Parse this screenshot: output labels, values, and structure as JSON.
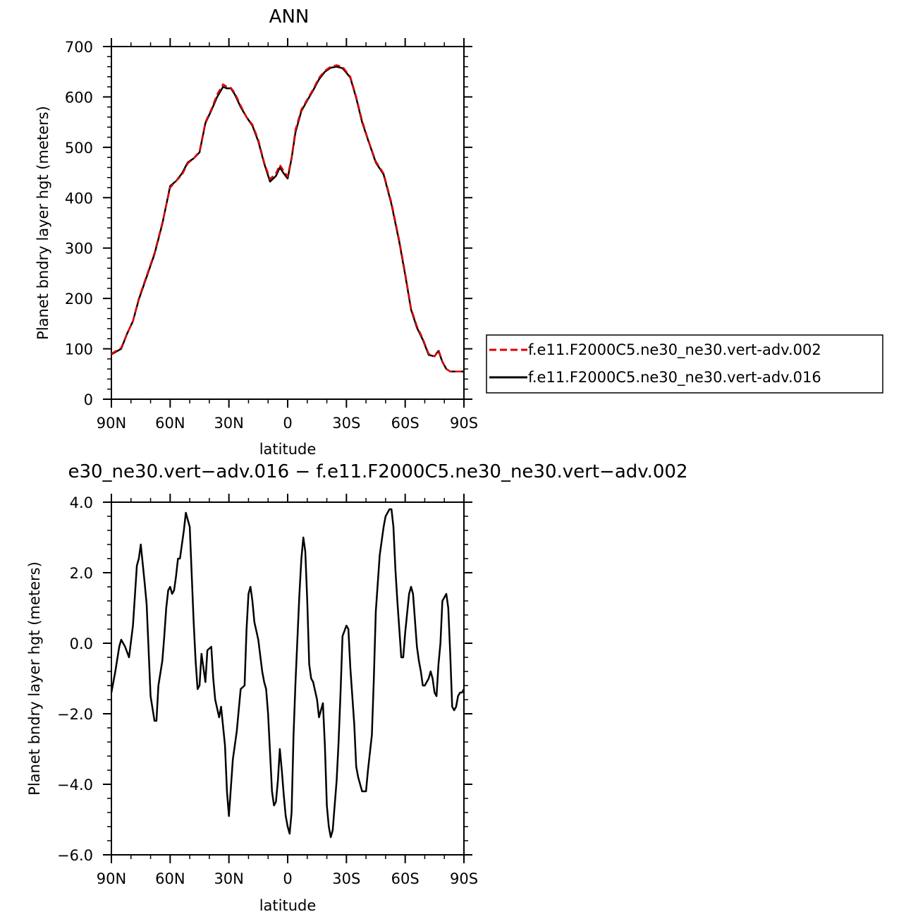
{
  "chart_data": [
    {
      "type": "line",
      "title": "ANN",
      "xlabel": "latitude",
      "ylabel": "Planet bndry layer hgt (meters)",
      "xlim": [
        -90,
        90
      ],
      "ylim": [
        0,
        700
      ],
      "x_ticks": [
        -90,
        -60,
        -30,
        0,
        30,
        60,
        90
      ],
      "x_tick_labels": [
        "90N",
        "60N",
        "30N",
        "0",
        "30S",
        "60S",
        "90S"
      ],
      "y_ticks": [
        0,
        100,
        200,
        300,
        400,
        500,
        600,
        700
      ],
      "y_tick_labels": [
        "0",
        "100",
        "200",
        "300",
        "400",
        "500",
        "600",
        "700"
      ],
      "x": [
        -90,
        -85,
        -82,
        -79,
        -76,
        -72,
        -68,
        -64,
        -60,
        -57,
        -54,
        -51,
        -48,
        -45,
        -42,
        -39,
        -36,
        -33,
        -31,
        -29,
        -27,
        -24,
        -21,
        -18,
        -15,
        -12,
        -9,
        -6,
        -4,
        -2,
        0,
        2,
        4,
        7,
        10,
        13,
        16,
        19,
        22,
        25,
        28,
        30,
        32,
        35,
        38,
        41,
        45,
        49,
        53,
        57,
        60,
        63,
        66,
        69,
        72,
        75,
        77,
        79,
        81,
        83,
        85,
        87,
        89,
        90
      ],
      "series": [
        {
          "name": "f.e11.F2000C5.ne30_ne30.vert-adv.002",
          "color": "#e00000",
          "dash": true,
          "values": [
            90,
            102,
            130,
            155,
            200,
            245,
            290,
            350,
            420,
            433,
            445,
            468,
            478,
            492,
            550,
            575,
            605,
            625,
            620,
            618,
            608,
            583,
            560,
            545,
            515,
            470,
            437,
            448,
            465,
            453,
            442,
            480,
            535,
            575,
            595,
            615,
            638,
            652,
            660,
            663,
            660,
            650,
            640,
            600,
            553,
            516,
            472,
            448,
            390,
            315,
            250,
            180,
            145,
            120,
            90,
            85,
            98,
            75,
            60,
            55,
            55,
            55,
            55,
            55
          ]
        },
        {
          "name": "f.e11.F2000C5.ne30_ne30.vert-adv.016",
          "color": "#000000",
          "dash": false,
          "values": [
            89,
            100,
            130,
            155,
            198,
            243,
            288,
            348,
            423,
            433,
            448,
            470,
            478,
            490,
            548,
            573,
            600,
            620,
            617,
            617,
            605,
            580,
            560,
            543,
            512,
            468,
            432,
            443,
            460,
            448,
            438,
            478,
            530,
            572,
            593,
            613,
            635,
            650,
            658,
            660,
            657,
            648,
            638,
            598,
            550,
            515,
            470,
            446,
            387,
            312,
            247,
            178,
            142,
            118,
            88,
            85,
            96,
            74,
            60,
            55,
            55,
            55,
            55,
            55
          ]
        }
      ],
      "legend": "right"
    },
    {
      "type": "line",
      "title": "e30_ne30.vert−adv.016 − f.e11.F2000C5.ne30_ne30.vert−adv.002",
      "xlabel": "latitude",
      "ylabel": "Planet bndry layer hgt (meters)",
      "xlim": [
        -90,
        90
      ],
      "ylim": [
        -6,
        4
      ],
      "x_ticks": [
        -90,
        -60,
        -30,
        0,
        30,
        60,
        90
      ],
      "x_tick_labels": [
        "90N",
        "60N",
        "30N",
        "0",
        "30S",
        "60S",
        "90S"
      ],
      "y_ticks": [
        -6,
        -4,
        -2,
        0,
        2,
        4
      ],
      "y_tick_labels": [
        "−6.0",
        "−4.0",
        "−2.0",
        "0.0",
        "2.0",
        "4.0"
      ],
      "x": [
        -90,
        -88,
        -86,
        -85,
        -83,
        -81,
        -79,
        -77,
        -76,
        -75,
        -73,
        -72,
        -70,
        -68,
        -67,
        -66,
        -64,
        -63,
        -62,
        -61,
        -60,
        -59,
        -58,
        -57,
        -56,
        -55,
        -53,
        -52,
        -50,
        -48,
        -47,
        -46,
        -45,
        -44,
        -42,
        -41,
        -39,
        -38,
        -37,
        -35,
        -34,
        -32,
        -31,
        -30,
        -29,
        -28,
        -26,
        -24,
        -22,
        -21,
        -20,
        -19,
        -18,
        -17,
        -15,
        -13,
        -12,
        -11,
        -10,
        -9,
        -8,
        -7,
        -6,
        -5,
        -4,
        -3,
        -2,
        -1,
        0,
        1,
        2,
        3,
        4,
        6,
        7,
        8,
        9,
        10,
        11,
        12,
        13,
        15,
        16,
        17,
        18,
        19,
        20,
        21,
        22,
        23,
        25,
        26,
        27,
        28,
        30,
        31,
        32,
        34,
        35,
        36,
        37,
        38,
        40,
        41,
        43,
        44,
        45,
        47,
        49,
        50,
        52,
        53,
        54,
        55,
        56,
        58,
        59,
        60,
        62,
        63,
        64,
        66,
        67,
        68,
        69,
        70,
        72,
        73,
        74,
        75,
        76,
        77,
        78,
        79,
        81,
        82,
        83,
        84,
        85,
        86,
        87,
        88,
        89,
        90
      ],
      "series": [
        {
          "name": "",
          "color": "#000000",
          "dash": false,
          "values": [
            -1.4,
            -0.8,
            -0.1,
            0.1,
            -0.1,
            -0.4,
            0.5,
            2.2,
            2.4,
            2.8,
            1.7,
            1.1,
            -1.5,
            -2.2,
            -2.2,
            -1.2,
            -0.5,
            0.2,
            1.0,
            1.5,
            1.6,
            1.4,
            1.5,
            1.9,
            2.4,
            2.4,
            3.2,
            3.7,
            3.3,
            0.6,
            -0.5,
            -1.3,
            -1.2,
            -0.3,
            -1.1,
            -0.2,
            -0.1,
            -1.0,
            -1.6,
            -2.1,
            -1.8,
            -2.9,
            -4.2,
            -4.9,
            -4.1,
            -3.3,
            -2.5,
            -1.3,
            -1.2,
            0.4,
            1.4,
            1.6,
            1.2,
            0.6,
            0.1,
            -0.8,
            -1.1,
            -1.3,
            -2.0,
            -3.1,
            -4.2,
            -4.6,
            -4.5,
            -3.9,
            -3.0,
            -3.6,
            -4.3,
            -4.9,
            -5.2,
            -5.4,
            -4.8,
            -2.6,
            -1.1,
            1.4,
            2.4,
            3.0,
            2.6,
            1.2,
            -0.6,
            -1.0,
            -1.1,
            -1.6,
            -2.1,
            -1.9,
            -1.7,
            -2.9,
            -4.6,
            -5.2,
            -5.5,
            -5.3,
            -3.9,
            -2.8,
            -1.4,
            0.2,
            0.5,
            0.4,
            -0.7,
            -2.3,
            -3.5,
            -3.8,
            -4.0,
            -4.2,
            -4.2,
            -3.6,
            -2.6,
            -1.0,
            0.9,
            2.5,
            3.3,
            3.6,
            3.8,
            3.8,
            3.3,
            2.1,
            1.2,
            -0.4,
            -0.4,
            0.3,
            1.4,
            1.6,
            1.4,
            -0.1,
            -0.5,
            -0.8,
            -1.2,
            -1.2,
            -1.0,
            -0.8,
            -1.0,
            -1.4,
            -1.5,
            -0.6,
            0.0,
            1.2,
            1.4,
            1.0,
            -0.3,
            -1.8,
            -1.9,
            -1.8,
            -1.5,
            -1.4,
            -1.4,
            -1.3
          ]
        }
      ]
    }
  ]
}
